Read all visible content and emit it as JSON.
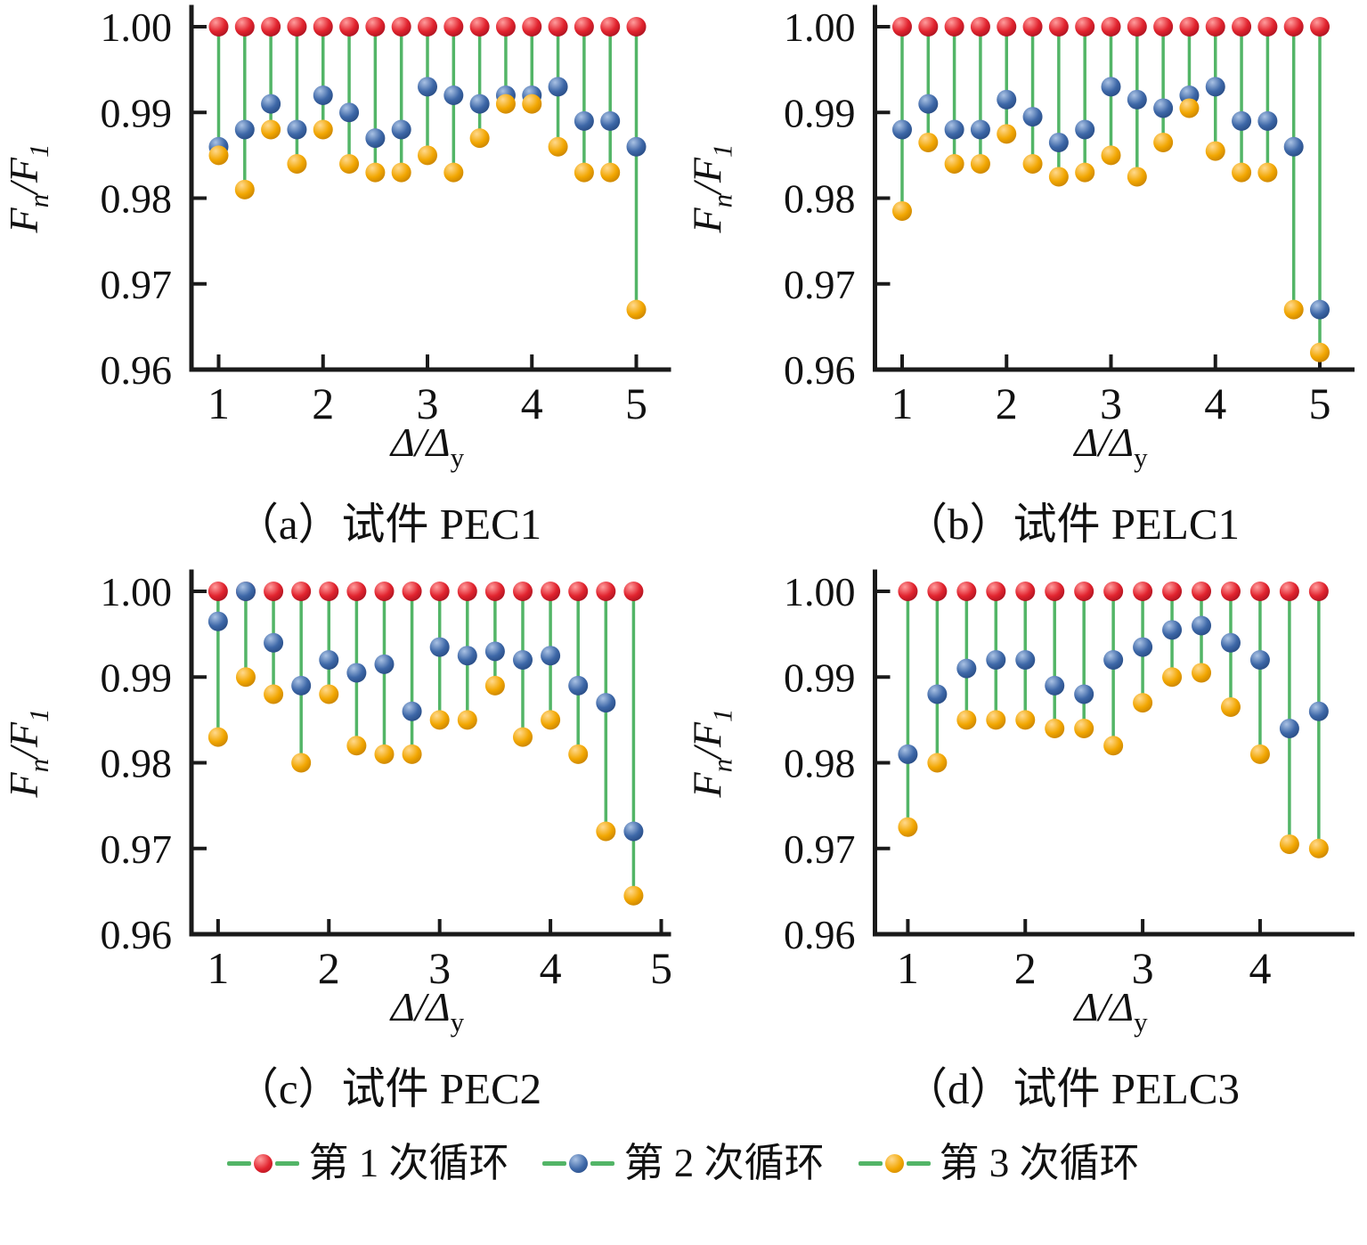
{
  "colors": {
    "axis": "#1a1a1a",
    "stem": "#53b567",
    "cycle1": {
      "main": "#e2242f",
      "highlight": "#ff9d9d",
      "dark": "#9e0f1d"
    },
    "cycle2": {
      "main": "#3e68a8",
      "highlight": "#aac2e4",
      "dark": "#23457b"
    },
    "cycle3": {
      "main": "#f2a702",
      "highlight": "#ffd98e",
      "dark": "#c07c00"
    }
  },
  "legend": {
    "items": [
      {
        "label": "第 1 次循环",
        "color_key": "cycle1"
      },
      {
        "label": "第 2 次循环",
        "color_key": "cycle2"
      },
      {
        "label": "第 3 次循环",
        "color_key": "cycle3"
      }
    ]
  },
  "axis_labels": {
    "xlabel_parts": {
      "base": "Δ/Δ",
      "sub": "y"
    },
    "ylabel_parts": {
      "base1": "F",
      "sub1": "n",
      "base2": "/F",
      "sub2": "1"
    }
  },
  "chart_data": [
    {
      "id": "a",
      "type": "scatter",
      "caption": "（a）试件 PEC1",
      "xlabel": "Δ/Δ_y",
      "ylabel": "F_n/F_1",
      "grid": false,
      "legend_position": "bottom",
      "xlim": [
        0.74,
        5.26
      ],
      "ylim": [
        0.96,
        1.003
      ],
      "x_ticks": [
        1,
        2,
        3,
        4,
        5
      ],
      "x_tick_labels": [
        "1",
        "2",
        "3",
        "4",
        "5"
      ],
      "y_tick_values": [
        1.0,
        0.99,
        0.98,
        0.97,
        0.96
      ],
      "y_tick_labels": [
        "1.00",
        "0.99",
        "0.98",
        "0.97",
        "0.96"
      ],
      "x": [
        1,
        1.25,
        1.5,
        1.75,
        2,
        2.25,
        2.5,
        2.75,
        3,
        3.25,
        3.5,
        3.75,
        4,
        4.25,
        4.5,
        4.75,
        5
      ],
      "series": [
        {
          "name": "第 1 次循环",
          "color_key": "cycle1",
          "values": [
            1.0,
            1.0,
            1.0,
            1.0,
            1.0,
            1.0,
            1.0,
            1.0,
            1.0,
            1.0,
            1.0,
            1.0,
            1.0,
            1.0,
            1.0,
            1.0,
            1.0
          ]
        },
        {
          "name": "第 2 次循环",
          "color_key": "cycle2",
          "values": [
            0.986,
            0.988,
            0.991,
            0.988,
            0.992,
            0.99,
            0.987,
            0.988,
            0.993,
            0.992,
            0.991,
            0.992,
            0.992,
            0.993,
            0.989,
            0.989,
            0.986
          ]
        },
        {
          "name": "第 3 次循环",
          "color_key": "cycle3",
          "values": [
            0.985,
            0.981,
            0.988,
            0.984,
            0.988,
            0.984,
            0.983,
            0.983,
            0.985,
            0.983,
            0.987,
            0.991,
            0.991,
            0.986,
            0.983,
            0.983,
            0.967
          ]
        }
      ]
    },
    {
      "id": "b",
      "type": "scatter",
      "caption": "（b）试件 PELC1",
      "xlabel": "Δ/Δ_y",
      "ylabel": "F_n/F_1",
      "grid": false,
      "legend_position": "bottom",
      "xlim": [
        0.74,
        5.26
      ],
      "ylim": [
        0.96,
        1.003
      ],
      "x_ticks": [
        1,
        2,
        3,
        4,
        5
      ],
      "x_tick_labels": [
        "1",
        "2",
        "3",
        "4",
        "5"
      ],
      "y_tick_values": [
        1.0,
        0.99,
        0.98,
        0.97,
        0.96
      ],
      "y_tick_labels": [
        "1.00",
        "0.99",
        "0.98",
        "0.97",
        "0.96"
      ],
      "x": [
        1,
        1.25,
        1.5,
        1.75,
        2,
        2.25,
        2.5,
        2.75,
        3,
        3.25,
        3.5,
        3.75,
        4,
        4.25,
        4.5,
        4.75,
        5
      ],
      "series": [
        {
          "name": "第 1 次循环",
          "color_key": "cycle1",
          "values": [
            1.0,
            1.0,
            1.0,
            1.0,
            1.0,
            1.0,
            1.0,
            1.0,
            1.0,
            1.0,
            1.0,
            1.0,
            1.0,
            1.0,
            1.0,
            1.0,
            1.0
          ]
        },
        {
          "name": "第 2 次循环",
          "color_key": "cycle2",
          "values": [
            0.988,
            0.991,
            0.988,
            0.988,
            0.9915,
            0.9895,
            0.9865,
            0.988,
            0.993,
            0.9915,
            0.9905,
            0.992,
            0.993,
            0.989,
            0.989,
            0.986,
            0.967
          ]
        },
        {
          "name": "第 3 次循环",
          "color_key": "cycle3",
          "values": [
            0.9785,
            0.9865,
            0.984,
            0.984,
            0.9875,
            0.984,
            0.9825,
            0.983,
            0.985,
            0.9825,
            0.9865,
            0.9905,
            0.9855,
            0.983,
            0.983,
            0.967,
            0.962
          ]
        }
      ]
    },
    {
      "id": "c",
      "type": "scatter",
      "caption": "（c）试件 PEC2",
      "xlabel": "Δ/Δ_y",
      "ylabel": "F_n/F_1",
      "grid": false,
      "legend_position": "bottom",
      "xlim": [
        0.76,
        5.02
      ],
      "ylim": [
        0.96,
        1.003
      ],
      "x_ticks": [
        1,
        2,
        3,
        4,
        5
      ],
      "x_tick_labels": [
        "1",
        "2",
        "3",
        "4",
        "5"
      ],
      "y_tick_values": [
        1.0,
        0.99,
        0.98,
        0.97,
        0.96
      ],
      "y_tick_labels": [
        "1.00",
        "0.99",
        "0.98",
        "0.97",
        "0.96"
      ],
      "x": [
        1,
        1.25,
        1.5,
        1.75,
        2,
        2.25,
        2.5,
        2.75,
        3,
        3.25,
        3.5,
        3.75,
        4,
        4.25,
        4.5,
        4.75
      ],
      "series": [
        {
          "name": "第 1 次循环",
          "color_key": "cycle1",
          "values": [
            1.0,
            1.0,
            1.0,
            1.0,
            1.0,
            1.0,
            1.0,
            1.0,
            1.0,
            1.0,
            1.0,
            1.0,
            1.0,
            1.0,
            1.0,
            1.0
          ]
        },
        {
          "name": "第 2 次循环",
          "color_key": "cycle2",
          "values": [
            0.9965,
            1.0,
            0.994,
            0.989,
            0.992,
            0.9905,
            0.9915,
            0.986,
            0.9935,
            0.9925,
            0.993,
            0.992,
            0.9925,
            0.989,
            0.987,
            0.972
          ]
        },
        {
          "name": "第 3 次循环",
          "color_key": "cycle3",
          "values": [
            0.983,
            0.99,
            0.988,
            0.98,
            0.988,
            0.982,
            0.981,
            0.981,
            0.985,
            0.985,
            0.989,
            0.983,
            0.985,
            0.981,
            0.972,
            0.9645
          ]
        }
      ]
    },
    {
      "id": "d",
      "type": "scatter",
      "caption": "（d）试件 PELC3",
      "xlabel": "Δ/Δ_y",
      "ylabel": "F_n/F_1",
      "grid": false,
      "legend_position": "bottom",
      "xlim": [
        0.72,
        4.74
      ],
      "ylim": [
        0.96,
        1.003
      ],
      "x_ticks": [
        1,
        2,
        3,
        4
      ],
      "x_tick_labels": [
        "1",
        "2",
        "3",
        "4"
      ],
      "y_tick_values": [
        1.0,
        0.99,
        0.98,
        0.97,
        0.96
      ],
      "y_tick_labels": [
        "1.00",
        "0.99",
        "0.98",
        "0.97",
        "0.96"
      ],
      "x": [
        1,
        1.25,
        1.5,
        1.75,
        2,
        2.25,
        2.5,
        2.75,
        3,
        3.25,
        3.5,
        3.75,
        4,
        4.25,
        4.5
      ],
      "series": [
        {
          "name": "第 1 次循环",
          "color_key": "cycle1",
          "values": [
            1.0,
            1.0,
            1.0,
            1.0,
            1.0,
            1.0,
            1.0,
            1.0,
            1.0,
            1.0,
            1.0,
            1.0,
            1.0,
            1.0,
            1.0
          ]
        },
        {
          "name": "第 2 次循环",
          "color_key": "cycle2",
          "values": [
            0.981,
            0.988,
            0.991,
            0.992,
            0.992,
            0.989,
            0.988,
            0.992,
            0.9935,
            0.9955,
            0.996,
            0.994,
            0.992,
            0.984,
            0.986
          ]
        },
        {
          "name": "第 3 次循环",
          "color_key": "cycle3",
          "values": [
            0.9725,
            0.98,
            0.985,
            0.985,
            0.985,
            0.984,
            0.984,
            0.982,
            0.987,
            0.99,
            0.9905,
            0.9865,
            0.981,
            0.9705,
            0.97
          ]
        }
      ]
    }
  ]
}
